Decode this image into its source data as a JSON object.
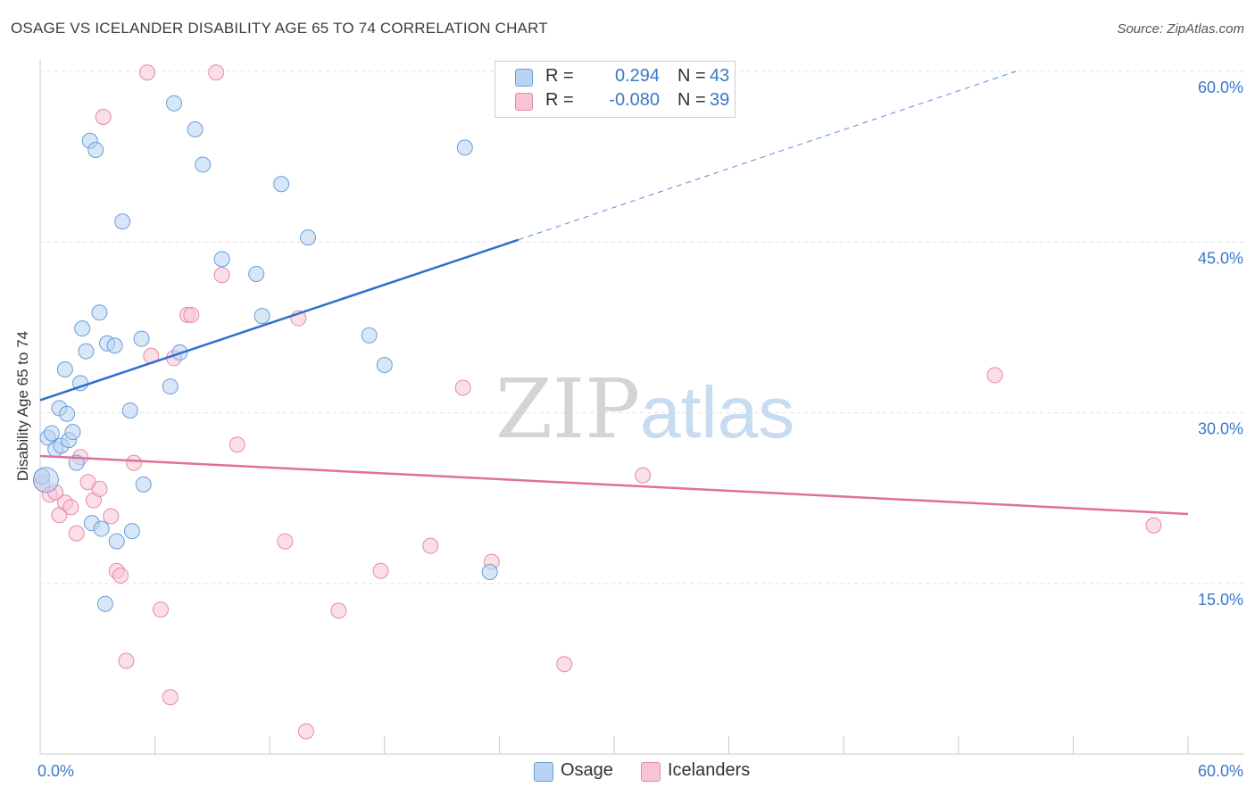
{
  "header": {
    "title": "OSAGE VS ICELANDER DISABILITY AGE 65 TO 74 CORRELATION CHART",
    "source": "Source: ZipAtlas.com"
  },
  "legend": {
    "osage": {
      "r_label": "R =",
      "r_value": "0.294",
      "n_label": "N =",
      "n_value": "43"
    },
    "icelanders": {
      "r_label": "R =",
      "r_value": "-0.080",
      "n_label": "N =",
      "n_value": "39"
    }
  },
  "bottom_legend": {
    "osage": "Osage",
    "icelanders": "Icelanders"
  },
  "watermark": {
    "zip": "ZIP",
    "atlas": "atlas"
  },
  "colors": {
    "osage_fill": "#b8d3f3",
    "osage_stroke": "#6a9ed8",
    "osage_line": "#2f6fcf",
    "ice_fill": "#f8c4d4",
    "ice_stroke": "#e58aa6",
    "ice_line": "#e0709a",
    "tick_label": "#3a78c9",
    "grid": "#e3e3e3"
  },
  "chart_data": {
    "type": "scatter",
    "title": "OSAGE VS ICELANDER DISABILITY AGE 65 TO 74 CORRELATION CHART",
    "xlabel": "",
    "ylabel": "Disability Age 65 to 74",
    "xlim": [
      0,
      60
    ],
    "ylim": [
      0,
      60
    ],
    "x_tick_labels": [
      "0.0%",
      "60.0%"
    ],
    "y_ticks": [
      15,
      30,
      45,
      60
    ],
    "y_tick_labels": [
      "15.0%",
      "30.0%",
      "45.0%",
      "60.0%"
    ],
    "series": [
      {
        "name": "Osage",
        "r": 0.294,
        "n": 43,
        "trend": {
          "x_start": 0,
          "y_start": 31.1,
          "x_end": 25,
          "y_end": 45.2,
          "dashed_to_x": 51,
          "dashed_to_y": 60
        },
        "points": [
          [
            0.1,
            24.4
          ],
          [
            0.4,
            27.8
          ],
          [
            0.6,
            28.2
          ],
          [
            0.8,
            26.8
          ],
          [
            1.0,
            30.4
          ],
          [
            1.1,
            27.1
          ],
          [
            1.3,
            33.8
          ],
          [
            1.4,
            29.9
          ],
          [
            1.5,
            27.6
          ],
          [
            1.7,
            28.3
          ],
          [
            1.9,
            25.6
          ],
          [
            2.1,
            32.6
          ],
          [
            2.2,
            37.4
          ],
          [
            2.4,
            35.4
          ],
          [
            2.6,
            53.9
          ],
          [
            2.7,
            20.3
          ],
          [
            2.9,
            53.1
          ],
          [
            3.1,
            38.8
          ],
          [
            3.2,
            19.8
          ],
          [
            3.4,
            13.2
          ],
          [
            3.5,
            36.1
          ],
          [
            3.9,
            35.9
          ],
          [
            4.0,
            18.7
          ],
          [
            4.3,
            46.8
          ],
          [
            4.7,
            30.2
          ],
          [
            4.8,
            19.6
          ],
          [
            5.3,
            36.5
          ],
          [
            5.4,
            23.7
          ],
          [
            6.8,
            32.3
          ],
          [
            7.0,
            57.2
          ],
          [
            7.3,
            35.3
          ],
          [
            8.1,
            54.9
          ],
          [
            8.5,
            51.8
          ],
          [
            9.5,
            43.5
          ],
          [
            11.3,
            42.2
          ],
          [
            11.6,
            38.5
          ],
          [
            12.6,
            50.1
          ],
          [
            14.0,
            45.4
          ],
          [
            17.2,
            36.8
          ],
          [
            18.0,
            34.2
          ],
          [
            22.2,
            53.3
          ],
          [
            23.5,
            16.0
          ],
          [
            0.3,
            24.1
          ]
        ]
      },
      {
        "name": "Icelanders",
        "r": -0.08,
        "n": 39,
        "trend": {
          "x_start": 0,
          "y_start": 26.2,
          "x_end": 60,
          "y_end": 21.1
        },
        "points": [
          [
            0.1,
            23.8
          ],
          [
            0.5,
            22.8
          ],
          [
            0.8,
            23.0
          ],
          [
            1.0,
            21.0
          ],
          [
            1.3,
            22.1
          ],
          [
            1.6,
            21.7
          ],
          [
            1.9,
            19.4
          ],
          [
            2.1,
            26.1
          ],
          [
            2.5,
            23.9
          ],
          [
            2.8,
            22.3
          ],
          [
            3.1,
            23.3
          ],
          [
            3.3,
            56.0
          ],
          [
            3.7,
            20.9
          ],
          [
            4.0,
            16.1
          ],
          [
            4.2,
            15.7
          ],
          [
            4.5,
            8.2
          ],
          [
            4.9,
            25.6
          ],
          [
            5.6,
            59.9
          ],
          [
            5.8,
            35.0
          ],
          [
            6.3,
            12.7
          ],
          [
            6.8,
            5.0
          ],
          [
            7.0,
            34.8
          ],
          [
            7.7,
            38.6
          ],
          [
            7.9,
            38.6
          ],
          [
            9.2,
            59.9
          ],
          [
            9.5,
            42.1
          ],
          [
            10.3,
            27.2
          ],
          [
            12.8,
            18.7
          ],
          [
            13.5,
            38.3
          ],
          [
            13.9,
            2.0
          ],
          [
            15.6,
            12.6
          ],
          [
            17.8,
            16.1
          ],
          [
            20.4,
            18.3
          ],
          [
            22.1,
            32.2
          ],
          [
            23.6,
            16.9
          ],
          [
            27.4,
            7.9
          ],
          [
            31.5,
            24.5
          ],
          [
            49.9,
            33.3
          ],
          [
            58.2,
            20.1
          ]
        ]
      }
    ]
  }
}
